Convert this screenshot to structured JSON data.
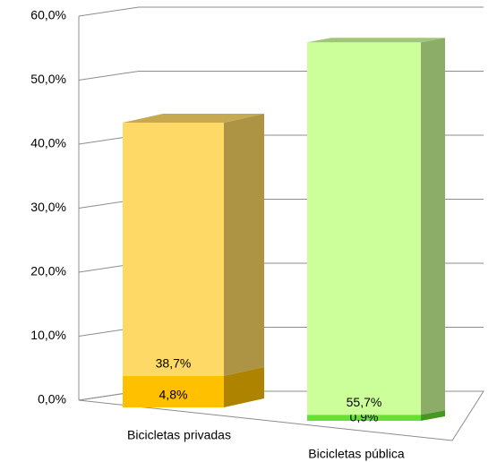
{
  "chart_data": {
    "type": "bar",
    "stacked": true,
    "three_d": true,
    "categories": [
      "Bicicletas privadas",
      "Bicicletas pública"
    ],
    "series": [
      {
        "values": [
          4.8,
          0.9
        ],
        "value_labels": [
          "4,8%",
          "0,9%"
        ],
        "colors": [
          "#ffc000",
          "#66e033"
        ]
      },
      {
        "values": [
          38.7,
          55.7
        ],
        "value_labels": [
          "38,7%",
          "55,7%"
        ],
        "colors": [
          "#ffd966",
          "#ccff99"
        ]
      }
    ],
    "ylim": [
      0,
      60
    ],
    "yticks": [
      {
        "value": 0,
        "label": "0,0%"
      },
      {
        "value": 10,
        "label": "10,0%"
      },
      {
        "value": 20,
        "label": "20,0%"
      },
      {
        "value": 30,
        "label": "30,0%"
      },
      {
        "value": 40,
        "label": "40,0%"
      },
      {
        "value": 50,
        "label": "50,0%"
      },
      {
        "value": 60,
        "label": "60,0%"
      }
    ],
    "grid": true
  }
}
